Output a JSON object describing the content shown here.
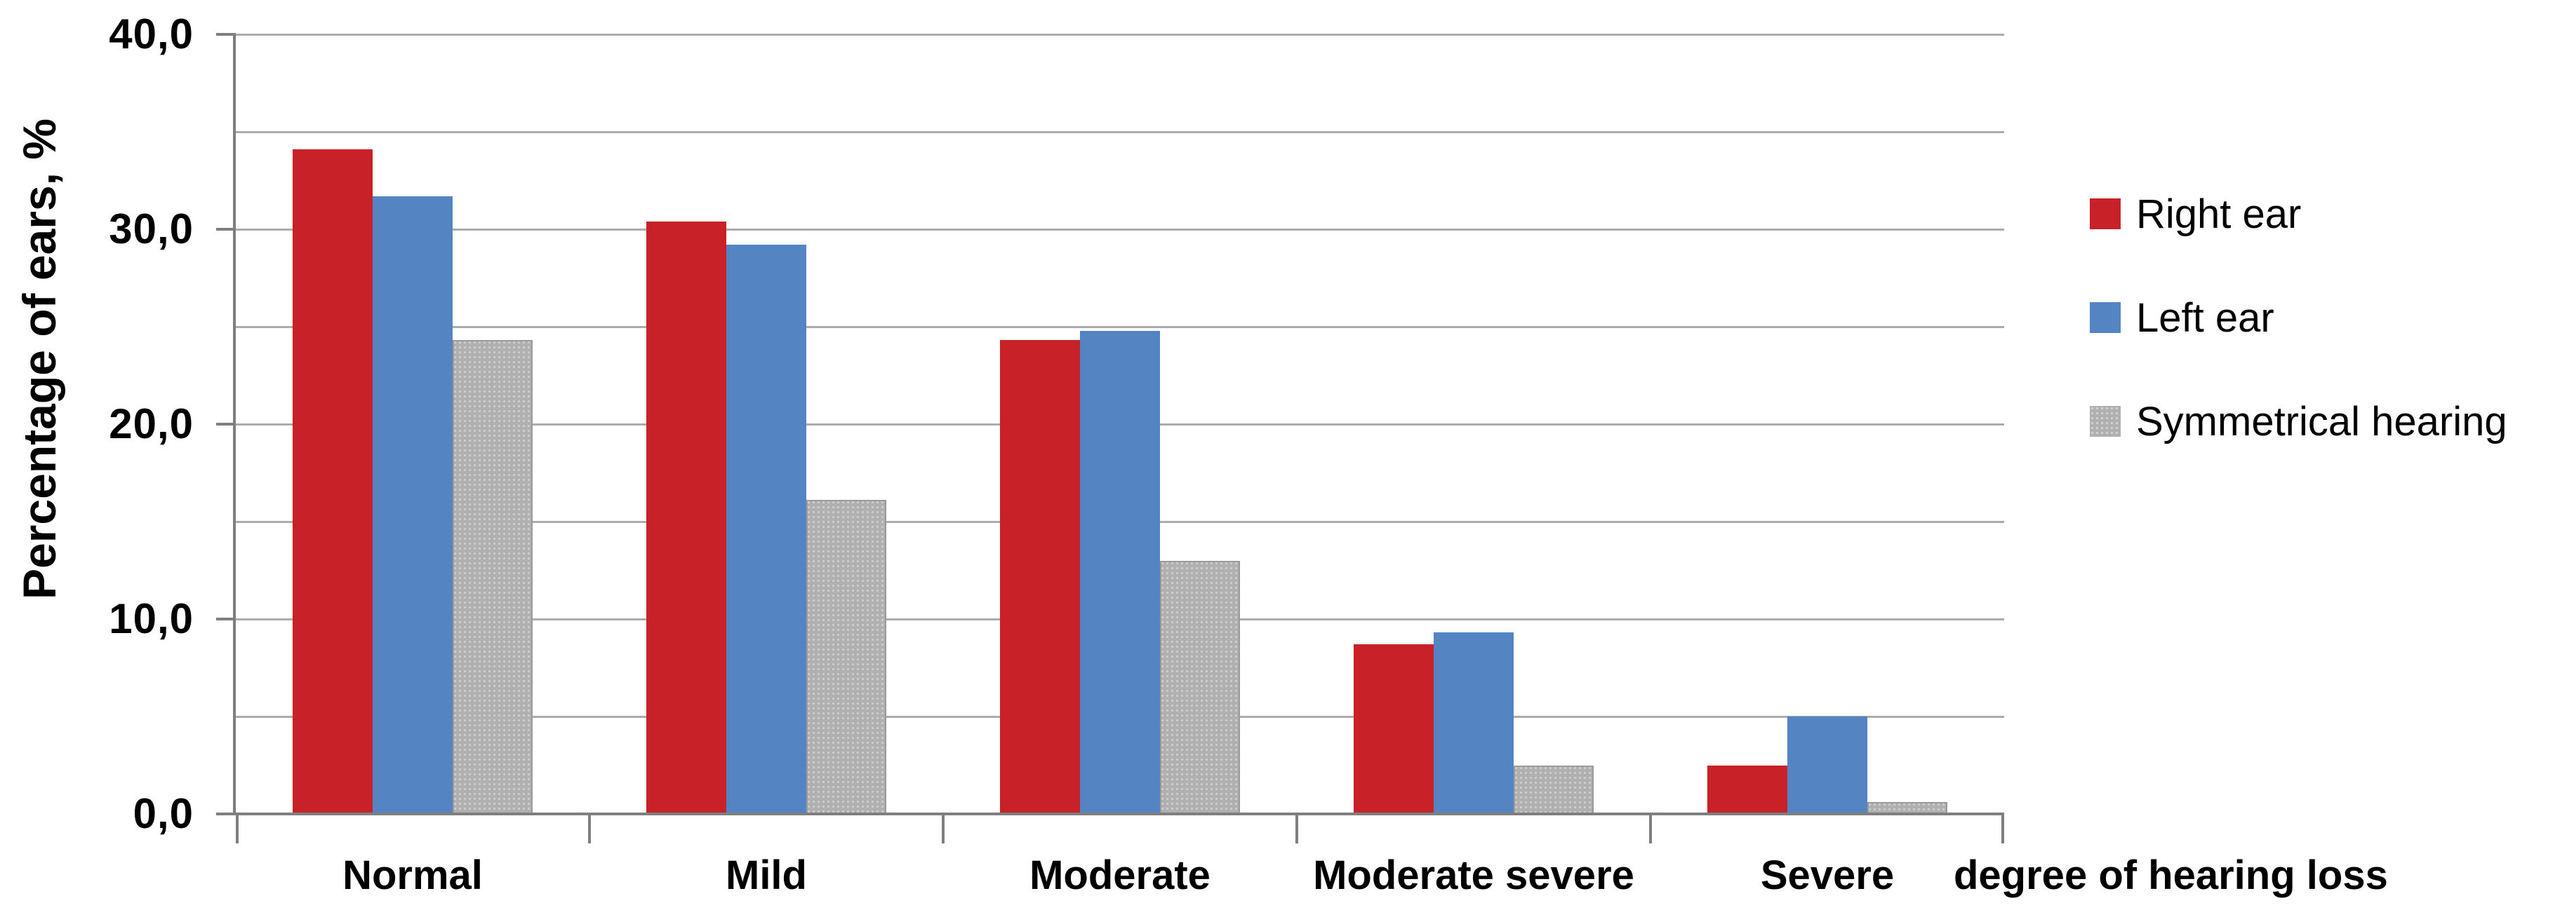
{
  "chart_data": {
    "type": "bar",
    "title": "",
    "ylabel": "Percentage of ears, %",
    "xlabel": "degree of hearing loss",
    "ylim": [
      0,
      40
    ],
    "gridline_step": 5,
    "ytick_step": 10,
    "ytick_labels": [
      "0,0",
      "10,0",
      "20,0",
      "30,0",
      "40,0"
    ],
    "grid": true,
    "legend_position": "right",
    "categories": [
      "Normal",
      "Mild",
      "Moderate",
      "Moderate severe",
      "Severe"
    ],
    "series": [
      {
        "name": "Right ear",
        "color": "#c92128",
        "pattern": "solid",
        "values": [
          34.1,
          30.4,
          24.3,
          8.7,
          2.5
        ]
      },
      {
        "name": "Left ear",
        "color": "#5484c1",
        "pattern": "solid",
        "values": [
          31.7,
          29.2,
          24.8,
          9.3,
          5.0
        ]
      },
      {
        "name": "Symmetrical hearing",
        "color": "#b0b0b0",
        "pattern": "dots",
        "values": [
          24.3,
          16.1,
          13.0,
          2.5,
          0.6
        ]
      }
    ]
  },
  "colors": {
    "background": "#ffffff",
    "gridline": "#acacac",
    "axis": "#7f7f7f",
    "text": "#000000"
  }
}
